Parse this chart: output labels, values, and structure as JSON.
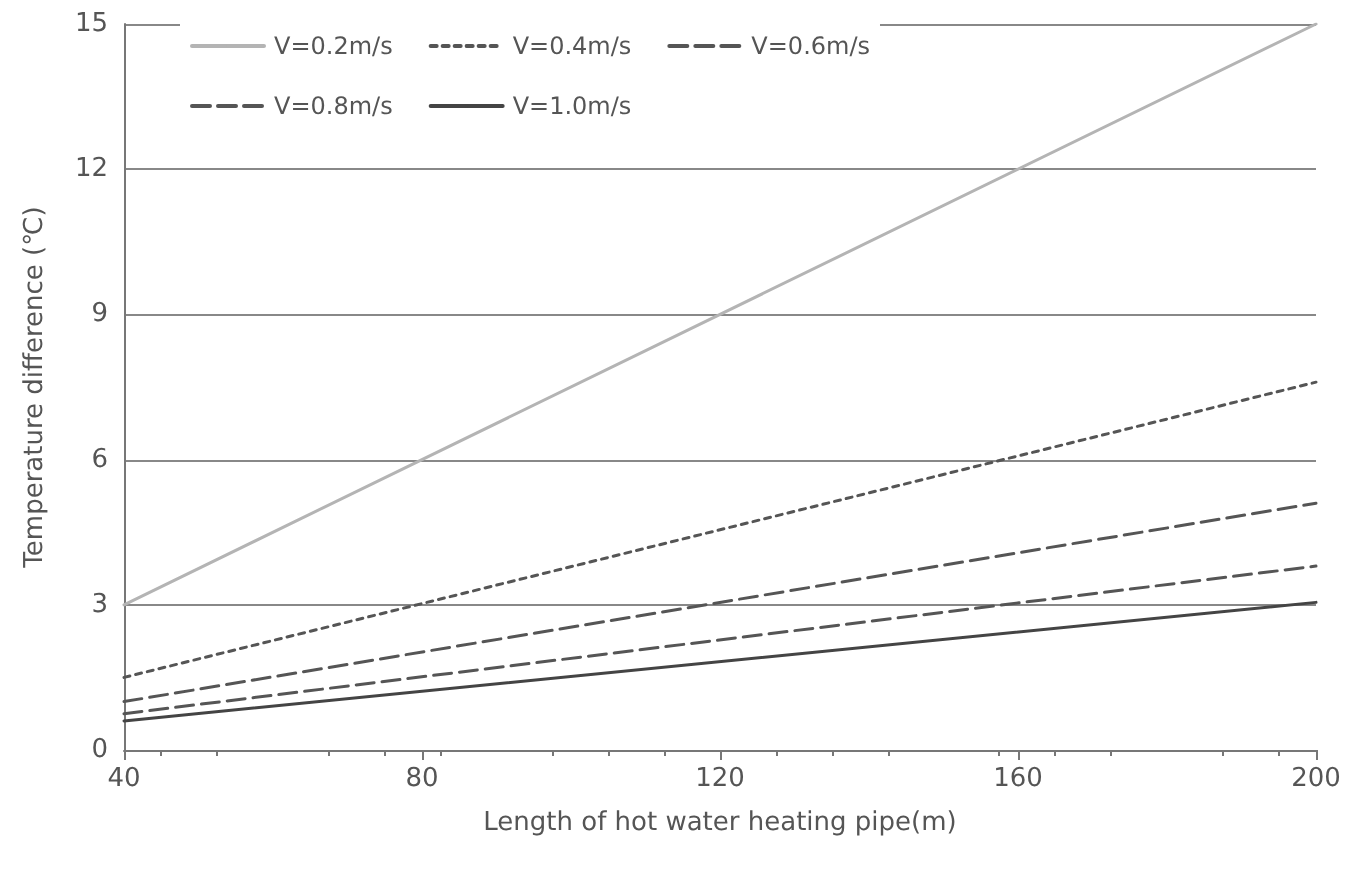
{
  "chart_data": {
    "type": "line",
    "xlabel": "Length of hot water heating pipe(m)",
    "ylabel": "Temperature difference (℃)",
    "x": [
      40,
      200
    ],
    "xlim": [
      40,
      200
    ],
    "xticks": [
      40,
      80,
      120,
      160,
      200
    ],
    "ylim": [
      0,
      15
    ],
    "yticks": [
      0,
      3,
      6,
      9,
      12,
      15
    ],
    "grid": "y",
    "legend": "top left",
    "marker": "none",
    "series": [
      {
        "name": "V=0.2m/s",
        "color": "#b4b4b4",
        "line_style": "solid",
        "values": [
          3,
          15
        ]
      },
      {
        "name": "V=0.4m/s",
        "color": "#555555",
        "line_style": "dotted",
        "values": [
          1.5,
          7.6
        ]
      },
      {
        "name": "V=0.6m/s",
        "color": "#555555",
        "line_style": "dashed",
        "values": [
          1,
          5.1
        ]
      },
      {
        "name": "V=0.8m/s",
        "color": "#555555",
        "line_style": "dashed",
        "values": [
          0.75,
          3.8
        ]
      },
      {
        "name": "V=1.0m/s",
        "color": "#444444",
        "line_style": "solid",
        "values": [
          0.6,
          3.05
        ]
      }
    ]
  }
}
